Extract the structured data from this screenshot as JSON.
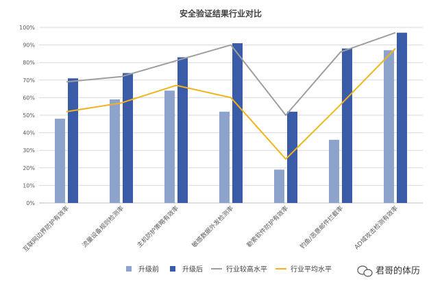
{
  "chart_data": {
    "type": "bar",
    "title": "安全验证结果行业对比",
    "categories": [
      "互联网边界防护有效率",
      "流量设备规则检测率",
      "主机防护策略有效率",
      "敏感数据外发检测率",
      "勒索软件防护有效率",
      "钓鱼/恶意邮件拦截率",
      "AD域攻击检测有效率"
    ],
    "yticks": [
      "0%",
      "10%",
      "20%",
      "30%",
      "40%",
      "50%",
      "60%",
      "70%",
      "80%",
      "90%",
      "100%"
    ],
    "ylim": [
      0,
      100
    ],
    "grid": true,
    "legend_position": "bottom",
    "series": [
      {
        "name": "升级前",
        "kind": "bar",
        "color": "#8EA3CC",
        "values": [
          48,
          59,
          64,
          52,
          19,
          36,
          87
        ]
      },
      {
        "name": "升级后",
        "kind": "bar",
        "color": "#3A5BA8",
        "values": [
          71,
          74,
          83,
          91,
          52,
          88,
          97
        ]
      },
      {
        "name": "行业较高水平",
        "kind": "line",
        "color": "#9E9E9E",
        "values": [
          69,
          72,
          81,
          90,
          50,
          86,
          97
        ]
      },
      {
        "name": "行业平均水平",
        "kind": "line",
        "color": "#F2B31B",
        "values": [
          52,
          57,
          67,
          60,
          25,
          56,
          88
        ]
      }
    ]
  },
  "watermark": {
    "text": "君哥的体历",
    "icon": "wechat-icon"
  }
}
